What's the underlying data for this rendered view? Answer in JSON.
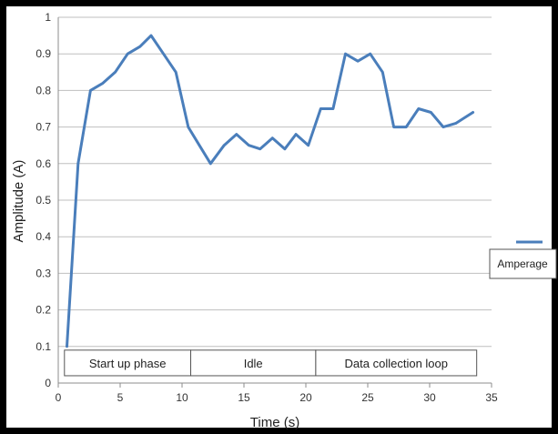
{
  "chart_data": {
    "type": "line",
    "xlabel": "Time (s)",
    "ylabel": "Amplitude (A)",
    "xlim": [
      0,
      35
    ],
    "ylim": [
      0,
      1
    ],
    "x_ticks": [
      "0",
      "5",
      "10",
      "15",
      "20",
      "25",
      "30",
      "35"
    ],
    "y_ticks": [
      "0",
      "0.1",
      "0.2",
      "0.3",
      "0.4",
      "0.5",
      "0.6",
      "0.7",
      "0.8",
      "0.9",
      "1"
    ],
    "grid": "horizontal",
    "legend_position": "right",
    "series": [
      {
        "name": "Amperage",
        "color": "#4a7ebb",
        "points": [
          [
            0.7,
            0.1
          ],
          [
            1.6,
            0.6
          ],
          [
            2.6,
            0.8
          ],
          [
            3.6,
            0.82
          ],
          [
            4.6,
            0.85
          ],
          [
            5.6,
            0.9
          ],
          [
            6.6,
            0.92
          ],
          [
            7.5,
            0.95
          ],
          [
            8.5,
            0.9
          ],
          [
            9.5,
            0.85
          ],
          [
            10.5,
            0.7
          ],
          [
            11.4,
            0.65
          ],
          [
            12.3,
            0.6
          ],
          [
            13.4,
            0.65
          ],
          [
            14.4,
            0.68
          ],
          [
            15.4,
            0.65
          ],
          [
            16.3,
            0.64
          ],
          [
            17.3,
            0.67
          ],
          [
            18.3,
            0.64
          ],
          [
            19.2,
            0.68
          ],
          [
            20.2,
            0.65
          ],
          [
            21.2,
            0.75
          ],
          [
            22.2,
            0.75
          ],
          [
            23.2,
            0.9
          ],
          [
            24.2,
            0.88
          ],
          [
            25.2,
            0.9
          ],
          [
            26.2,
            0.85
          ],
          [
            27.1,
            0.7
          ],
          [
            28.1,
            0.7
          ],
          [
            29.1,
            0.75
          ],
          [
            30.1,
            0.74
          ],
          [
            31.1,
            0.7
          ],
          [
            32.1,
            0.71
          ],
          [
            33.5,
            0.74
          ]
        ]
      }
    ],
    "phases": [
      {
        "label": "Start up phase",
        "start": 0.5,
        "end": 10.7
      },
      {
        "label": "Idle",
        "start": 10.7,
        "end": 20.8
      },
      {
        "label": "Data collection  loop",
        "start": 20.8,
        "end": 33.8
      }
    ],
    "phase_band": [
      0.02,
      0.09
    ]
  }
}
